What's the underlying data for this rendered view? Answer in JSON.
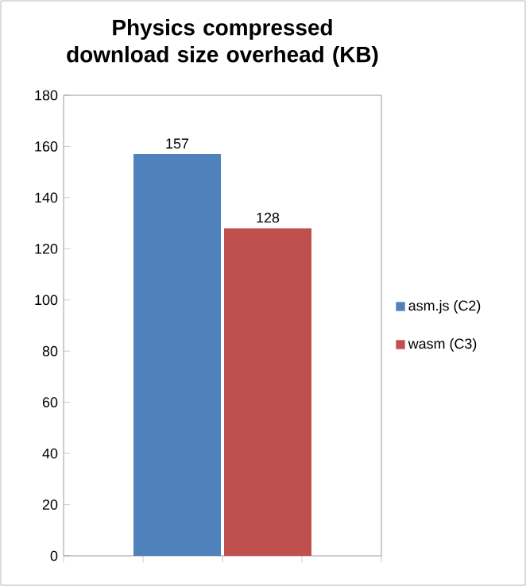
{
  "chart_data": {
    "type": "bar",
    "title": "Physics compressed download size overhead (KB)",
    "categories": [
      null
    ],
    "series": [
      {
        "name": "asm.js (C2)",
        "color": "#4f81bd",
        "values": [
          157
        ]
      },
      {
        "name": "wasm (C3)",
        "color": "#c0504d",
        "values": [
          128
        ]
      }
    ],
    "ylim": [
      0,
      180
    ],
    "yticks": [
      0,
      20,
      40,
      60,
      80,
      100,
      120,
      140,
      160,
      180
    ],
    "data_labels": true,
    "legend": "right",
    "grid": false
  }
}
